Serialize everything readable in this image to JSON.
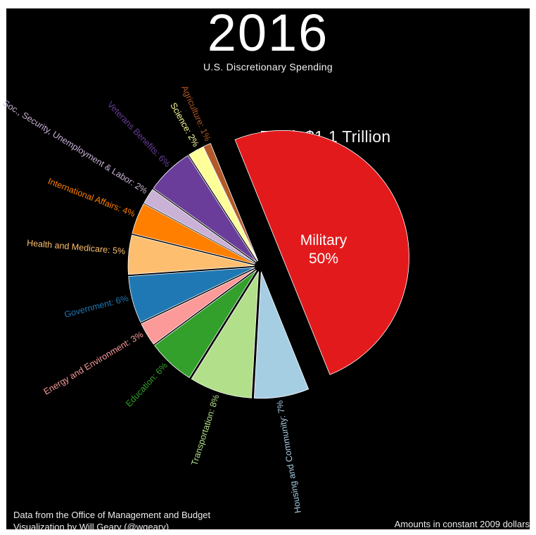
{
  "header": {
    "title": "2016",
    "subtitle": "U.S. Discretionary Spending"
  },
  "footer": {
    "credit_line1": "Data from the Office of Management and Budget",
    "credit_line2": "Visualization by Will Geary (@wgeary)",
    "note": "Amounts in constant 2009 dollars"
  },
  "colors": {
    "background": "#000000",
    "frame": "#ffffff",
    "text": "#ffffff",
    "wedge_edge": "#ffffff"
  },
  "chart_data": {
    "type": "pie",
    "title": "Total: $1.1 Trillion",
    "units": "percent",
    "start_angle_deg": 112,
    "direction": "clockwise",
    "legend_position": "radial-labels",
    "slices": [
      {
        "label": "Military",
        "value": 50,
        "color": "#e31a1c",
        "exploded": true,
        "label_inside": true
      },
      {
        "label": "Housing and Community",
        "value": 7,
        "color": "#a6cee3",
        "exploded": false,
        "label_inside": false
      },
      {
        "label": "Transportation",
        "value": 8,
        "color": "#b2df8a",
        "exploded": false,
        "label_inside": false
      },
      {
        "label": "Education",
        "value": 6,
        "color": "#33a02c",
        "exploded": false,
        "label_inside": false
      },
      {
        "label": "Energy and Environment",
        "value": 3,
        "color": "#fb9a99",
        "exploded": false,
        "label_inside": false
      },
      {
        "label": "Government",
        "value": 6,
        "color": "#1f78b4",
        "exploded": false,
        "label_inside": false
      },
      {
        "label": "Health and Medicare",
        "value": 5,
        "color": "#fdbf6f",
        "exploded": false,
        "label_inside": false
      },
      {
        "label": "International Affairs",
        "value": 4,
        "color": "#ff7f00",
        "exploded": false,
        "label_inside": false
      },
      {
        "label": "Soc., Security, Unemployment & Labor",
        "value": 2,
        "color": "#cab2d6",
        "exploded": false,
        "label_inside": false
      },
      {
        "label": "Veterans Benefits",
        "value": 6,
        "color": "#6a3d9a",
        "exploded": false,
        "label_inside": false
      },
      {
        "label": "Science",
        "value": 2,
        "color": "#ffff99",
        "exploded": false,
        "label_inside": false
      },
      {
        "label": "Agriculture",
        "value": 1,
        "color": "#b15928",
        "exploded": false,
        "label_inside": false
      }
    ]
  }
}
